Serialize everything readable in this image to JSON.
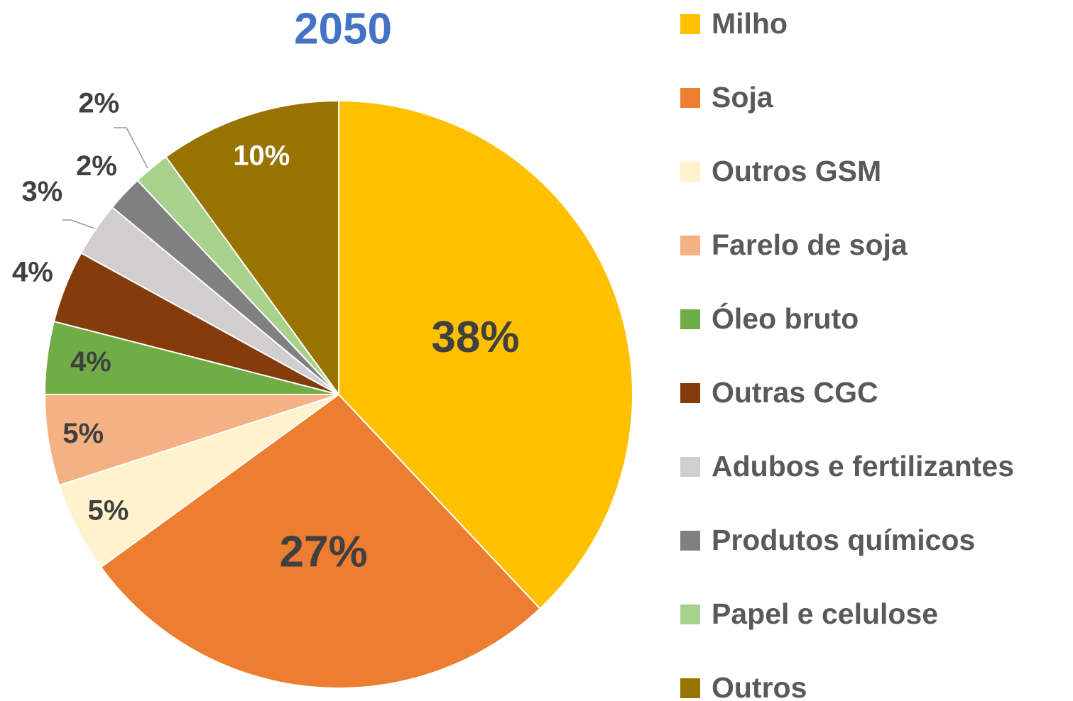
{
  "chart_data": {
    "type": "pie",
    "title": "2050",
    "categories": [
      "Milho",
      "Soja",
      "Outros GSM",
      "Farelo de soja",
      "Óleo bruto",
      "Outras CGC",
      "Adubos e fertilizantes",
      "Produtos químicos",
      "Papel e celulose",
      "Outros"
    ],
    "values": [
      38,
      27,
      5,
      5,
      4,
      4,
      3,
      2,
      2,
      10
    ],
    "colors": [
      "#FFC000",
      "#ED7D31",
      "#FFF2CC",
      "#F4B183",
      "#70AD47",
      "#843C0C",
      "#D0CECE",
      "#808080",
      "#A9D18E",
      "#997300"
    ],
    "legend": "right"
  }
}
